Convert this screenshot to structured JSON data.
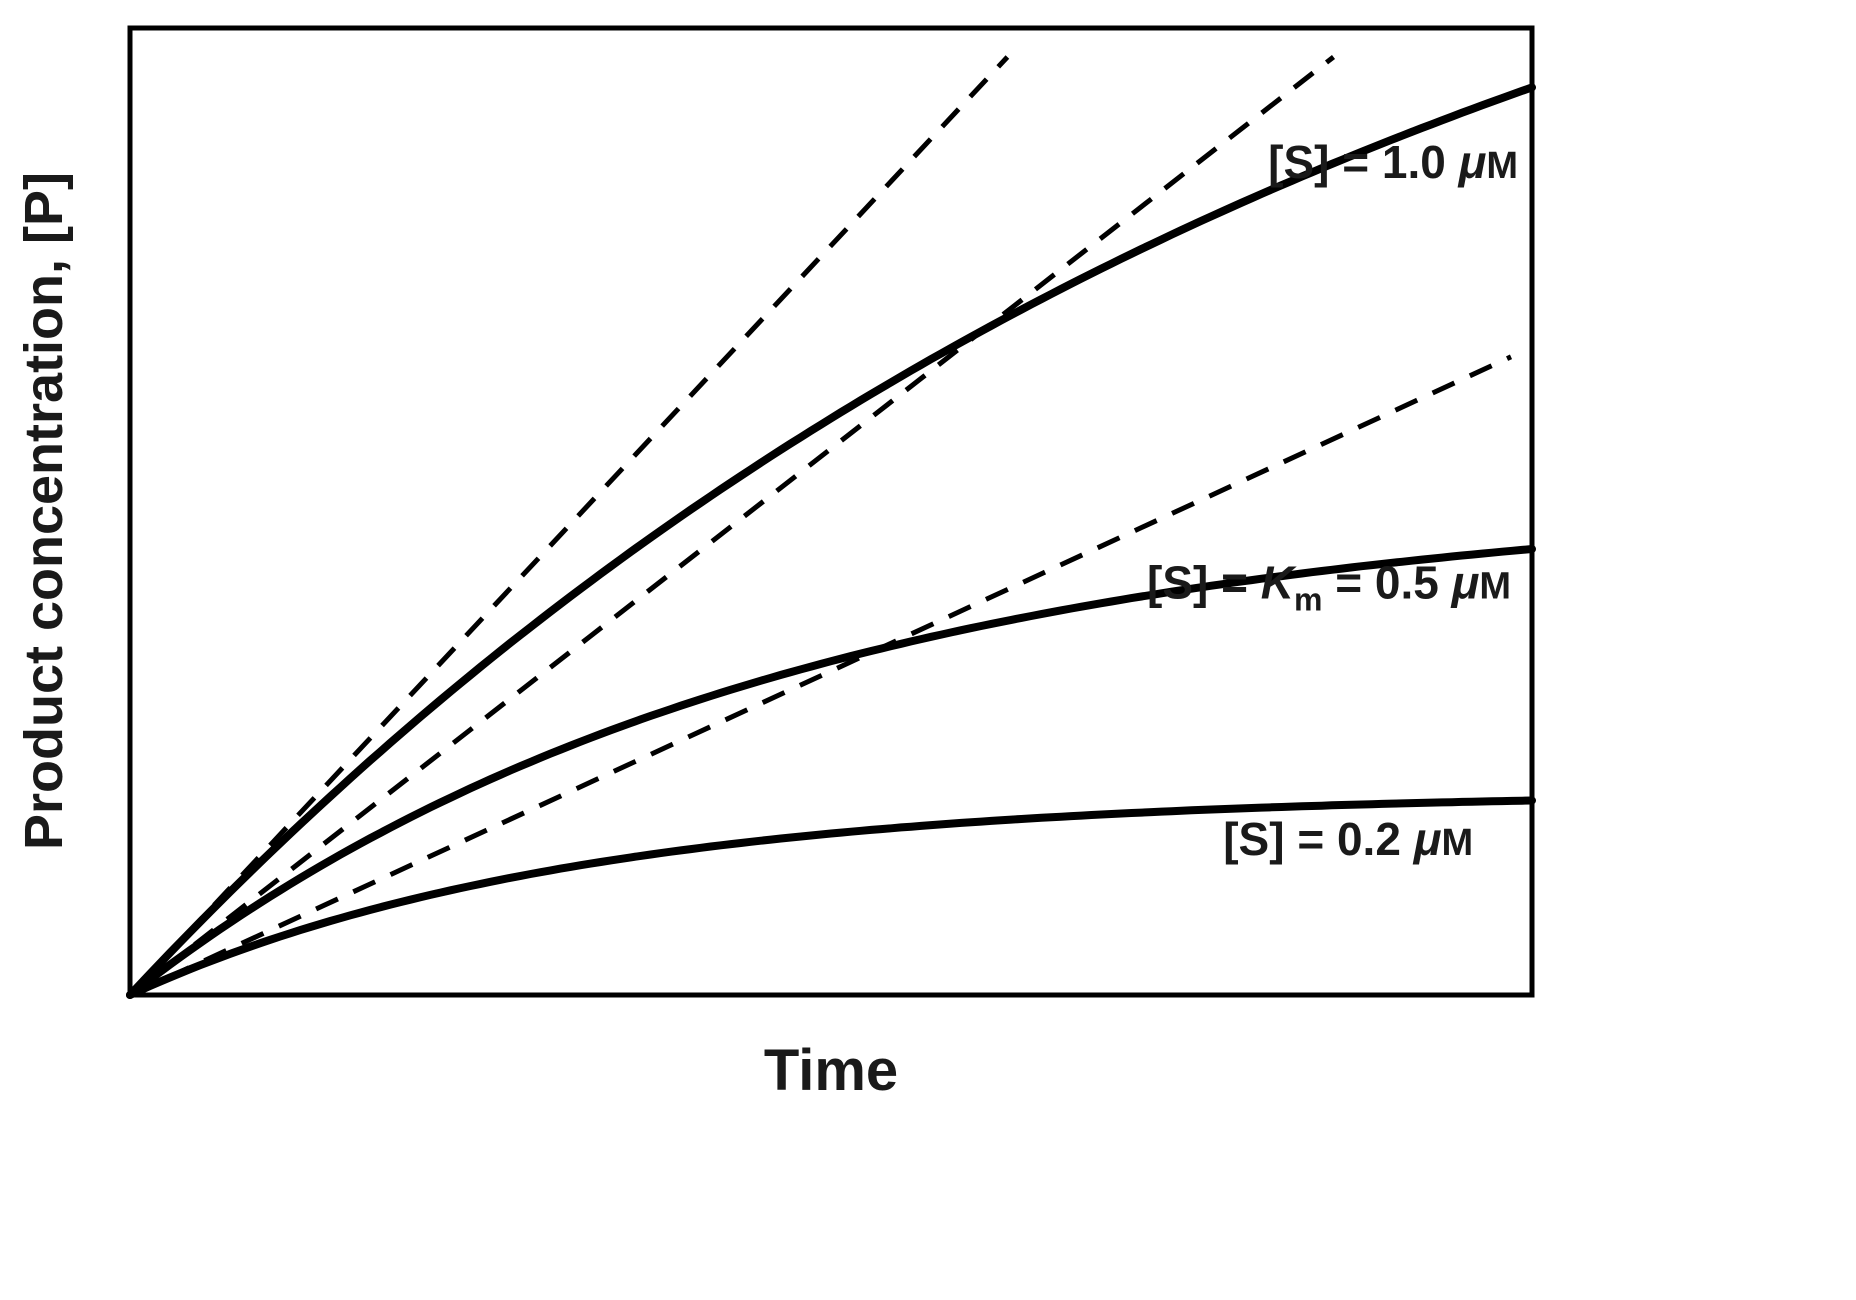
{
  "chart_data": {
    "type": "line",
    "xlabel": "Time",
    "ylabel": "Product concentration, [P]",
    "x_ticks": [],
    "y_ticks": [],
    "x_range": [
      0,
      1
    ],
    "y_range": [
      0,
      1
    ],
    "grid": false,
    "legend_position": "none (labels placed inline next to curves)",
    "model_note": "Schematic enzyme-kinetics progress curves: P(t) = plateau * (1 - exp(-rate * t)); dashed lines are initial-velocity tangents from the origin with slope = initial_slope.",
    "colors": {
      "curve": "#000000",
      "tangent": "#000000",
      "border": "#000000",
      "background": "#ffffff"
    },
    "series": [
      {
        "name": "[S] = 1.0 μM",
        "style": "solid",
        "plateau": 1.4,
        "rate": 1.11,
        "initial_slope": 1.55,
        "end_value": 0.94,
        "label_x": 0.99,
        "label_y": 0.845,
        "label_segments": [
          {
            "text": "[S] = 1.0 "
          },
          {
            "text": "μ",
            "italic": true
          },
          {
            "text": "M",
            "small": true
          }
        ]
      },
      {
        "name": "[S] = Km = 0.5 μM",
        "style": "solid",
        "plateau": 0.52,
        "rate": 2.18,
        "initial_slope": 1.13,
        "end_value": 0.46,
        "label_x": 0.985,
        "label_y": 0.41,
        "label_segments": [
          {
            "text": "[S] = "
          },
          {
            "text": "K",
            "italic": true
          },
          {
            "text": "m",
            "sub": true
          },
          {
            "text": " = 0.5 "
          },
          {
            "text": "μ",
            "italic": true
          },
          {
            "text": "M",
            "small": true
          }
        ]
      },
      {
        "name": "[S] = 0.2 μM",
        "style": "solid",
        "plateau": 0.21,
        "rate": 3.17,
        "initial_slope": 0.67,
        "end_value": 0.2,
        "label_x": 0.958,
        "label_y": 0.145,
        "label_segments": [
          {
            "text": "[S] = 0.2 "
          },
          {
            "text": "μ",
            "italic": true
          },
          {
            "text": "M",
            "small": true
          }
        ]
      }
    ],
    "tangents": [
      {
        "for_series": "[S] = 1.0 μM",
        "slope": 1.55,
        "dashed": true
      },
      {
        "for_series": "[S] = Km = 0.5 μM",
        "slope": 1.13,
        "dashed": true
      },
      {
        "for_series": "[S] = 0.2 μM",
        "slope": 0.67,
        "dashed": true
      }
    ]
  }
}
